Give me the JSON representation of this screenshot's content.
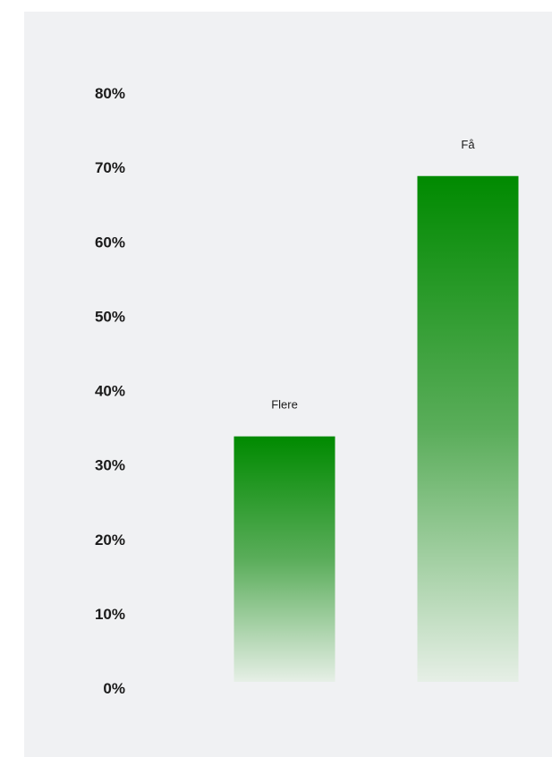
{
  "chart_data": {
    "type": "bar",
    "categories": [
      "Flere",
      "Få"
    ],
    "values": [
      33,
      68
    ],
    "ylim": [
      0,
      80
    ],
    "yticks": [
      0,
      10,
      20,
      30,
      40,
      50,
      60,
      70,
      80
    ],
    "ytick_labels": [
      "0%",
      "10%",
      "20%",
      "30%",
      "40%",
      "50%",
      "60%",
      "70%",
      "80%"
    ],
    "grid": false,
    "legend": "none",
    "colors": {
      "bar_top": "#008a00",
      "bar_mid": "#5aad5a",
      "bar_bottom": "#e6efe6",
      "background": "#f0f1f3",
      "text": "#1b1b1b"
    }
  }
}
